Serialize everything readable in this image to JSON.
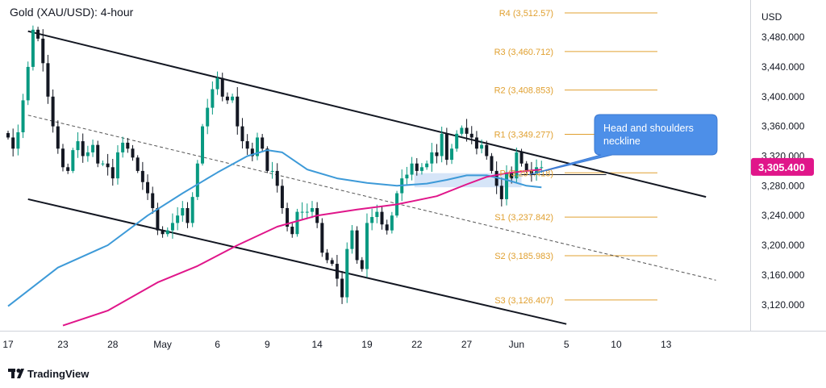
{
  "chart_data": {
    "type": "candlestick",
    "title": "Gold (XAU/USD): 4-hour",
    "currency_label": "USD",
    "last_price": "3,305.400",
    "accent_colors": {
      "bull": "#089981",
      "bear": "#131722",
      "ma_fast": "#3d9ad8",
      "ma_slow": "#e0168a",
      "pivot": "#e0a030",
      "price_tag": "#e0168a",
      "callout": "#4d8fe8"
    },
    "y_axis": {
      "ylim": [
        3085,
        3530
      ],
      "ticks": [
        "3,480.000",
        "3,440.000",
        "3,400.000",
        "3,360.000",
        "3,320.000",
        "3,280.000",
        "3,240.000",
        "3,200.000",
        "3,160.000",
        "3,120.000"
      ],
      "tick_values": [
        3480,
        3440,
        3400,
        3360,
        3320,
        3280,
        3240,
        3200,
        3160,
        3120
      ]
    },
    "x_axis": {
      "ticks": [
        "17",
        "23",
        "28",
        "May",
        "6",
        "9",
        "14",
        "19",
        "22",
        "27",
        "Jun",
        "5",
        "10",
        "13"
      ],
      "tick_index": [
        0,
        11,
        21,
        31,
        42,
        52,
        62,
        72,
        82,
        92,
        102,
        112,
        122,
        132
      ]
    },
    "pivot_levels": [
      {
        "label": "R4 (3,512.57)",
        "value": 3512.57
      },
      {
        "label": "R3 (3,460.712)",
        "value": 3460.712
      },
      {
        "label": "R2 (3,408.853)",
        "value": 3408.853
      },
      {
        "label": "R1 (3,349.277)",
        "value": 3349.277
      },
      {
        "label": "P (3,297.418)",
        "value": 3297.418
      },
      {
        "label": "S1 (3,237.842)",
        "value": 3237.842
      },
      {
        "label": "S2 (3,185.983)",
        "value": 3185.983
      },
      {
        "label": "S3 (3,126.407)",
        "value": 3126.407
      }
    ],
    "annotation": "Head and shoulders neckline",
    "brand": "TradingView",
    "close_path": [
      3345,
      3330,
      3352,
      3395,
      3440,
      3490,
      3478,
      3445,
      3400,
      3360,
      3330,
      3305,
      3300,
      3328,
      3340,
      3320,
      3325,
      3335,
      3310,
      3310,
      3305,
      3290,
      3325,
      3338,
      3330,
      3318,
      3300,
      3285,
      3270,
      3250,
      3220,
      3215,
      3220,
      3230,
      3240,
      3250,
      3230,
      3265,
      3310,
      3360,
      3385,
      3410,
      3425,
      3400,
      3395,
      3400,
      3360,
      3340,
      3330,
      3320,
      3345,
      3330,
      3300,
      3300,
      3280,
      3250,
      3225,
      3215,
      3245,
      3245,
      3245,
      3250,
      3230,
      3190,
      3180,
      3175,
      3155,
      3130,
      3195,
      3220,
      3180,
      3168,
      3230,
      3238,
      3245,
      3228,
      3220,
      3240,
      3270,
      3290,
      3295,
      3310,
      3300,
      3305,
      3310,
      3325,
      3320,
      3350,
      3315,
      3330,
      3350,
      3358,
      3350,
      3345,
      3330,
      3335,
      3320,
      3300,
      3280,
      3262,
      3298,
      3290,
      3325,
      3310,
      3300,
      3296,
      3305,
      3305
    ],
    "ma_fast_anchors": [
      [
        0,
        3118
      ],
      [
        10,
        3170
      ],
      [
        20,
        3200
      ],
      [
        28,
        3240
      ],
      [
        35,
        3270
      ],
      [
        42,
        3298
      ],
      [
        48,
        3320
      ],
      [
        52,
        3328
      ],
      [
        55,
        3325
      ],
      [
        60,
        3302
      ],
      [
        66,
        3290
      ],
      [
        72,
        3284
      ],
      [
        78,
        3280
      ],
      [
        84,
        3283
      ],
      [
        88,
        3288
      ],
      [
        92,
        3294
      ],
      [
        96,
        3294
      ],
      [
        100,
        3288
      ],
      [
        104,
        3280
      ],
      [
        107,
        3278
      ]
    ],
    "ma_slow_anchors": [
      [
        11,
        3092
      ],
      [
        20,
        3112
      ],
      [
        30,
        3150
      ],
      [
        38,
        3172
      ],
      [
        46,
        3200
      ],
      [
        54,
        3225
      ],
      [
        62,
        3240
      ],
      [
        70,
        3248
      ],
      [
        78,
        3255
      ],
      [
        86,
        3266
      ],
      [
        92,
        3282
      ],
      [
        96,
        3292
      ],
      [
        100,
        3297
      ],
      [
        104,
        3300
      ],
      [
        107,
        3302
      ]
    ],
    "channel_upper": [
      [
        4,
        3488
      ],
      [
        140,
        3265
      ]
    ],
    "channel_lower": [
      [
        4,
        3262
      ],
      [
        112,
        3094
      ]
    ],
    "midline": [
      [
        4,
        3375
      ],
      [
        142,
        3153
      ]
    ],
    "neckline": [
      [
        102,
        3295
      ],
      [
        120,
        3295
      ]
    ]
  }
}
